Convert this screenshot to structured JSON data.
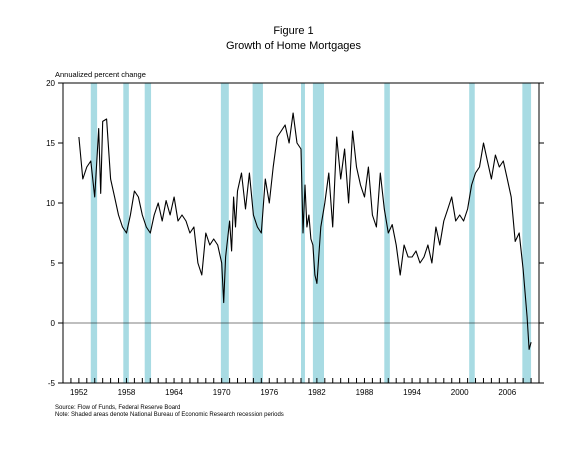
{
  "figure": {
    "number": "Figure 1",
    "title": "Growth of Home Mortgages"
  },
  "source_note": "Source: Flow of Funds, Federal Reserve Board",
  "shading_note": "Note: Shaded areas denote National Bureau of Economic Research recession periods",
  "chart_data": {
    "type": "line",
    "title": "Growth of Home Mortgages",
    "ylabel": "Annualized percent change",
    "xlabel": "",
    "xlim": [
      1950,
      2010
    ],
    "ylim": [
      -5,
      20
    ],
    "y_ticks": [
      -5,
      0,
      5,
      10,
      15,
      20
    ],
    "x_ticks": [
      1952,
      1958,
      1964,
      1970,
      1976,
      1982,
      1988,
      1994,
      2000,
      2006
    ],
    "zero_line": true,
    "grid": false,
    "colors": {
      "line": "#000000",
      "recession": "#a8dbe3"
    },
    "recessions": [
      [
        1953.5,
        1954.3
      ],
      [
        1957.6,
        1958.3
      ],
      [
        1960.3,
        1961.1
      ],
      [
        1969.9,
        1970.9
      ],
      [
        1973.9,
        1975.2
      ],
      [
        1980.0,
        1980.5
      ],
      [
        1981.5,
        1982.9
      ],
      [
        1990.5,
        1991.2
      ],
      [
        2001.2,
        2001.9
      ],
      [
        2007.9,
        2009.0
      ]
    ],
    "series": [
      {
        "x": [
          1952.0,
          1952.5,
          1953.0,
          1953.5,
          1954.0,
          1954.5,
          1954.75,
          1955.0,
          1955.5,
          1956.0,
          1956.5,
          1957.0,
          1957.5,
          1958.0,
          1958.5,
          1959.0,
          1959.5,
          1960.0,
          1960.5,
          1961.0,
          1961.5,
          1962.0,
          1962.5,
          1963.0,
          1963.5,
          1964.0,
          1964.5,
          1965.0,
          1965.5,
          1966.0,
          1966.5,
          1967.0,
          1967.5,
          1968.0,
          1968.5,
          1969.0,
          1969.5,
          1970.0,
          1970.25,
          1970.5,
          1971.0,
          1971.25,
          1971.5,
          1971.75,
          1972.0,
          1972.5,
          1973.0,
          1973.5,
          1974.0,
          1974.5,
          1975.0,
          1975.5,
          1976.0,
          1976.5,
          1977.0,
          1977.5,
          1978.0,
          1978.5,
          1979.0,
          1979.5,
          1980.0,
          1980.25,
          1980.5,
          1980.75,
          1981.0,
          1981.25,
          1981.5,
          1981.75,
          1982.0,
          1982.5,
          1983.0,
          1983.5,
          1984.0,
          1984.5,
          1985.0,
          1985.5,
          1986.0,
          1986.5,
          1987.0,
          1987.5,
          1988.0,
          1988.5,
          1989.0,
          1989.5,
          1990.0,
          1990.5,
          1991.0,
          1991.5,
          1992.0,
          1992.5,
          1993.0,
          1993.5,
          1994.0,
          1994.5,
          1995.0,
          1995.5,
          1996.0,
          1996.5,
          1997.0,
          1997.5,
          1998.0,
          1998.5,
          1999.0,
          1999.5,
          2000.0,
          2000.5,
          2001.0,
          2001.5,
          2002.0,
          2002.5,
          2003.0,
          2003.5,
          2004.0,
          2004.5,
          2005.0,
          2005.5,
          2006.0,
          2006.5,
          2007.0,
          2007.5,
          2008.0,
          2008.5,
          2008.75,
          2009.0
        ],
        "values": [
          15.5,
          12.0,
          13.0,
          13.5,
          10.5,
          16.2,
          10.8,
          16.8,
          17.0,
          12.0,
          10.5,
          9.0,
          8.0,
          7.5,
          9.0,
          11.0,
          10.5,
          9.0,
          8.0,
          7.5,
          9.0,
          10.0,
          8.5,
          10.2,
          9.0,
          10.5,
          8.5,
          9.0,
          8.5,
          7.5,
          8.0,
          5.0,
          4.0,
          7.5,
          6.5,
          7.0,
          6.5,
          5.0,
          1.7,
          5.5,
          8.5,
          6.0,
          10.5,
          8.0,
          11.0,
          12.5,
          9.5,
          12.5,
          9.0,
          8.0,
          7.5,
          12.0,
          10.0,
          13.0,
          15.5,
          16.0,
          16.5,
          15.0,
          17.5,
          15.0,
          14.5,
          7.5,
          11.5,
          8.0,
          9.0,
          7.0,
          6.5,
          4.0,
          3.3,
          8.0,
          10.0,
          12.5,
          8.0,
          15.5,
          12.0,
          14.5,
          10.0,
          16.0,
          13.0,
          11.5,
          10.5,
          13.0,
          9.0,
          8.0,
          12.5,
          9.5,
          7.5,
          8.2,
          6.5,
          4.0,
          6.5,
          5.5,
          5.5,
          6.0,
          5.0,
          5.5,
          6.5,
          5.0,
          8.0,
          6.5,
          8.5,
          9.5,
          10.5,
          8.5,
          9.0,
          8.5,
          9.5,
          11.5,
          12.5,
          13.0,
          15.0,
          13.5,
          12.0,
          14.0,
          13.0,
          13.5,
          12.0,
          10.5,
          6.8,
          7.5,
          4.5,
          0.5,
          -2.2,
          -1.6
        ]
      }
    ]
  }
}
